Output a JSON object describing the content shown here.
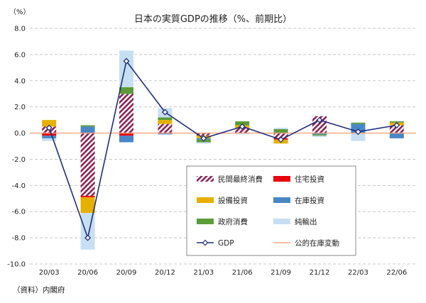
{
  "chart_data": {
    "type": "bar",
    "title": "日本の実質GDPの推移（%、前期比）",
    "ylabel": "（%）",
    "source": "（資料）内閣府",
    "ylim": [
      -10,
      8
    ],
    "ytick_step": 2,
    "ytick_labels": [
      "8.0",
      "6.0",
      "4.0",
      "2.0",
      "0.0",
      "-2.0",
      "-4.0",
      "-6.0",
      "-8.0",
      "-10.0"
    ],
    "categories": [
      "20/03",
      "20/06",
      "20/09",
      "20/12",
      "21/03",
      "21/06",
      "21/09",
      "21/12",
      "22/03",
      "22/06"
    ],
    "stacked": true,
    "series": [
      {
        "name": "民間最終消費",
        "key": "consumption",
        "color": "#8b2252",
        "pattern": "hatch",
        "values": [
          0.5,
          -4.8,
          3.0,
          0.7,
          -0.2,
          0.4,
          -0.4,
          1.3,
          0.0,
          0.6
        ]
      },
      {
        "name": "住宅投資",
        "key": "housing",
        "color": "#e8000b",
        "values": [
          -0.2,
          -0.1,
          -0.2,
          0.0,
          0.0,
          0.0,
          -0.1,
          0.0,
          0.0,
          0.0
        ]
      },
      {
        "name": "設備投資",
        "key": "capex",
        "color": "#e6b000",
        "values": [
          0.5,
          -1.2,
          0.0,
          0.3,
          -0.2,
          0.2,
          -0.3,
          0.0,
          0.0,
          0.2
        ]
      },
      {
        "name": "在庫投資",
        "key": "inventory",
        "color": "#4a86c5",
        "values": [
          -0.2,
          0.5,
          -0.5,
          -0.1,
          -0.1,
          0.0,
          0.0,
          -0.1,
          0.7,
          -0.4
        ]
      },
      {
        "name": "政府消費",
        "key": "govt",
        "color": "#5b9b3a",
        "values": [
          0.0,
          0.1,
          0.5,
          0.2,
          -0.2,
          0.3,
          0.3,
          -0.1,
          0.1,
          0.1
        ]
      },
      {
        "name": "純輸出",
        "key": "netexports",
        "color": "#c7dff2",
        "values": [
          -0.2,
          -2.8,
          2.8,
          0.7,
          -0.1,
          -0.1,
          0.1,
          -0.1,
          -0.6,
          0.0
        ]
      },
      {
        "name": "公的在庫変動",
        "key": "public_inventory",
        "color": "#f4a582",
        "values": [
          0.0,
          0.0,
          0.0,
          0.0,
          0.0,
          0.0,
          0.0,
          0.0,
          0.0,
          0.0
        ]
      }
    ],
    "line": {
      "name": "GDP",
      "color": "#1f2d7a",
      "values": [
        0.4,
        -8.0,
        5.5,
        1.6,
        -0.4,
        0.5,
        -0.5,
        1.0,
        0.1,
        0.6
      ]
    },
    "legend": {
      "placement": "bottom-center",
      "order": [
        "consumption",
        "housing",
        "capex",
        "inventory",
        "govt",
        "netexports",
        "line",
        "public_inventory"
      ]
    },
    "grid": true
  }
}
